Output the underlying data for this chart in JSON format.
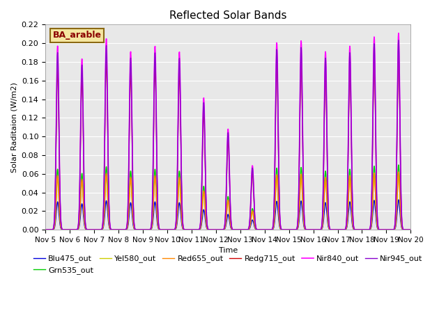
{
  "title": "Reflected Solar Bands",
  "ylabel": "Solar Raditaion (W/m2)",
  "xlabel": "Time",
  "ylim": [
    0,
    0.22
  ],
  "bg_color": "#e8e8e8",
  "annotation": "BA_arable",
  "legend": [
    "Blu475_out",
    "Grn535_out",
    "Yel580_out",
    "Red655_out",
    "Redg715_out",
    "Nir840_out",
    "Nir945_out"
  ],
  "colors": [
    "#0000dd",
    "#00cc00",
    "#cccc00",
    "#ff8800",
    "#cc0000",
    "#ff00ff",
    "#8800cc"
  ],
  "lw": [
    1.0,
    1.0,
    1.0,
    1.0,
    1.0,
    1.2,
    1.0
  ],
  "start_day": 5,
  "end_day": 20,
  "cloud_factors": [
    1.0,
    0.93,
    1.04,
    0.97,
    1.0,
    0.97,
    0.72,
    0.55,
    0.35,
    1.02,
    1.03,
    0.97,
    1.0,
    1.05,
    1.07
  ],
  "scale_factors": [
    0.03,
    0.065,
    0.055,
    0.058,
    0.175,
    0.197,
    0.19
  ],
  "peak_sigma": 0.055,
  "pts_per_day": 96
}
